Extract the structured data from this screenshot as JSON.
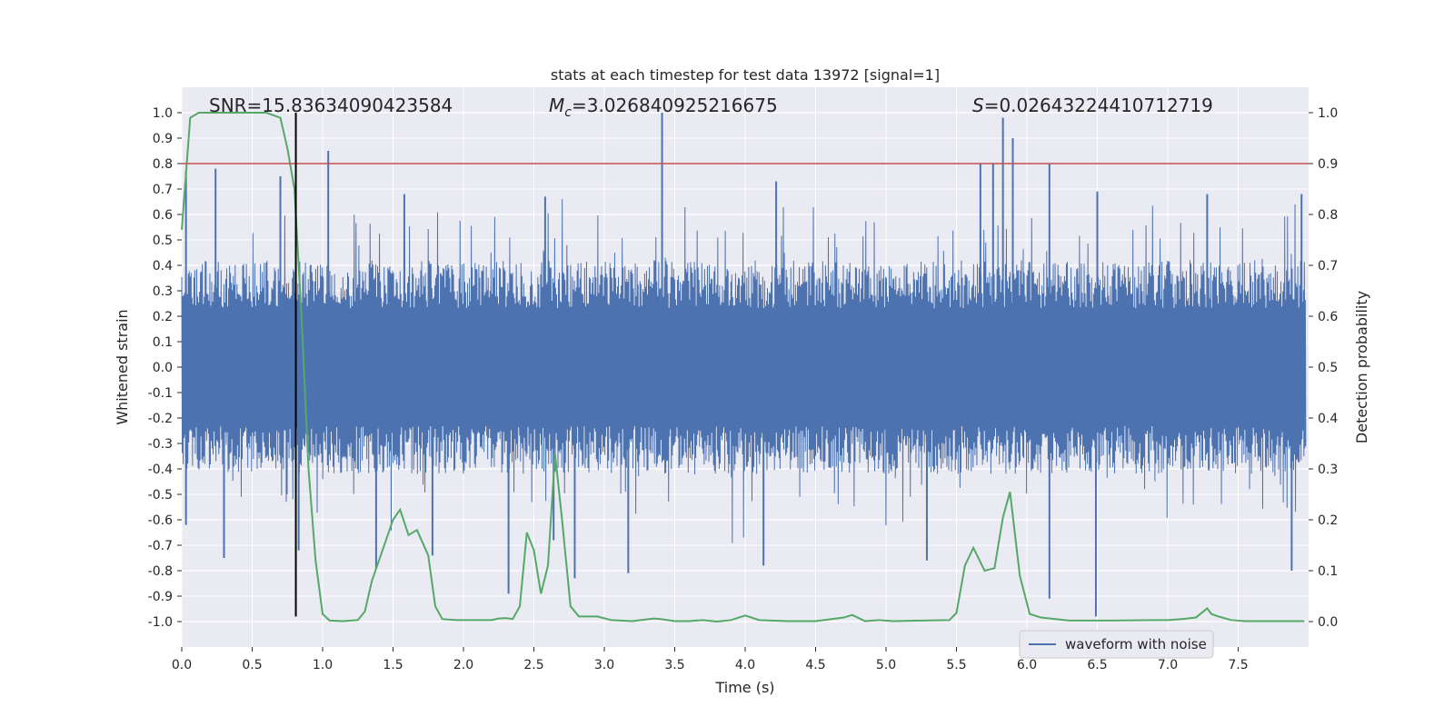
{
  "chart_data": {
    "type": "line",
    "title": "stats at each timestep for test data 13972 [signal=1]",
    "xlabel": "Time (s)",
    "ylabel": "Whitened strain",
    "y2label": "Detection probability",
    "xlim": [
      0,
      8
    ],
    "ylim": [
      -1.1,
      1.1
    ],
    "y2lim": [
      -0.05,
      1.05
    ],
    "xticks": [
      0.0,
      0.5,
      1.0,
      1.5,
      2.0,
      2.5,
      3.0,
      3.5,
      4.0,
      4.5,
      5.0,
      5.5,
      6.0,
      6.5,
      7.0,
      7.5
    ],
    "yticks": [
      -1.0,
      -0.9,
      -0.8,
      -0.7,
      -0.6,
      -0.5,
      -0.4,
      -0.3,
      -0.2,
      -0.1,
      0.0,
      0.1,
      0.2,
      0.3,
      0.4,
      0.5,
      0.6,
      0.7,
      0.8,
      0.9,
      1.0
    ],
    "y2ticks": [
      0.0,
      0.1,
      0.2,
      0.3,
      0.4,
      0.5,
      0.6,
      0.7,
      0.8,
      0.9,
      1.0
    ],
    "threshold_line": {
      "y2": 0.9,
      "color": "#c44e52"
    },
    "event_line": {
      "x": 0.81,
      "y_from": -0.98,
      "y_to": 1.0,
      "color": "#000000"
    },
    "annotations": {
      "snr": "SNR=15.83634090423584",
      "mc": "=3.026840925216675",
      "mc_symbol": "M",
      "mc_sub": "c",
      "s": "=0.02643224410712719",
      "s_symbol": "S"
    },
    "legend": {
      "label": "waveform with noise",
      "position": "lower-right"
    },
    "colors": {
      "waveform": "#4c72b0",
      "probability": "#55a868",
      "background": "#eaeaf2",
      "grid": "#ffffff"
    },
    "waveform_series": {
      "name": "waveform with noise",
      "t_start": 0.0,
      "t_end": 7.98,
      "samples": 2400,
      "seed": 13972,
      "base_amplitude": 0.42,
      "spikes": [
        {
          "x": 0.03,
          "y": 0.77
        },
        {
          "x": 0.03,
          "y": -0.62
        },
        {
          "x": 0.24,
          "y": 0.78
        },
        {
          "x": 0.3,
          "y": -0.75
        },
        {
          "x": 0.7,
          "y": 0.75
        },
        {
          "x": 0.83,
          "y": -0.72
        },
        {
          "x": 1.04,
          "y": 0.85
        },
        {
          "x": 1.38,
          "y": -0.79
        },
        {
          "x": 1.58,
          "y": 0.68
        },
        {
          "x": 1.78,
          "y": -0.74
        },
        {
          "x": 2.32,
          "y": -0.89
        },
        {
          "x": 2.58,
          "y": 0.67
        },
        {
          "x": 2.64,
          "y": -0.68
        },
        {
          "x": 2.79,
          "y": -0.83
        },
        {
          "x": 3.17,
          "y": -0.81
        },
        {
          "x": 3.41,
          "y": 1.0
        },
        {
          "x": 4.13,
          "y": -0.78
        },
        {
          "x": 4.22,
          "y": 0.73
        },
        {
          "x": 5.29,
          "y": -0.76
        },
        {
          "x": 5.67,
          "y": 0.8
        },
        {
          "x": 5.76,
          "y": 0.8
        },
        {
          "x": 5.83,
          "y": 0.98
        },
        {
          "x": 5.9,
          "y": 0.9
        },
        {
          "x": 6.16,
          "y": -0.91
        },
        {
          "x": 6.16,
          "y": 0.8
        },
        {
          "x": 6.49,
          "y": -0.98
        },
        {
          "x": 6.5,
          "y": 0.69
        },
        {
          "x": 7.28,
          "y": 0.68
        },
        {
          "x": 7.88,
          "y": -0.8
        },
        {
          "x": 7.95,
          "y": 0.68
        }
      ]
    },
    "probability_series": {
      "name": "detection probability",
      "x": [
        0.0,
        0.06,
        0.12,
        0.6,
        0.7,
        0.75,
        0.8,
        0.85,
        0.9,
        0.95,
        1.0,
        1.05,
        1.15,
        1.25,
        1.3,
        1.35,
        1.4,
        1.45,
        1.5,
        1.55,
        1.61,
        1.67,
        1.75,
        1.8,
        1.85,
        1.95,
        2.1,
        2.2,
        2.25,
        2.3,
        2.35,
        2.4,
        2.45,
        2.5,
        2.55,
        2.6,
        2.65,
        2.7,
        2.76,
        2.82,
        2.9,
        2.95,
        3.05,
        3.2,
        3.35,
        3.4,
        3.5,
        3.6,
        3.7,
        3.8,
        3.9,
        4.0,
        4.1,
        4.3,
        4.5,
        4.7,
        4.76,
        4.85,
        4.95,
        5.05,
        5.25,
        5.45,
        5.5,
        5.56,
        5.62,
        5.7,
        5.77,
        5.83,
        5.88,
        5.95,
        6.02,
        6.1,
        6.3,
        6.6,
        6.9,
        7.0,
        7.1,
        7.2,
        7.28,
        7.31,
        7.36,
        7.45,
        7.55,
        7.97
      ],
      "y": [
        0.77,
        0.99,
        1.0,
        1.0,
        0.99,
        0.93,
        0.85,
        0.6,
        0.3,
        0.12,
        0.015,
        0.002,
        0.001,
        0.003,
        0.02,
        0.08,
        0.12,
        0.16,
        0.2,
        0.22,
        0.17,
        0.18,
        0.13,
        0.03,
        0.005,
        0.003,
        0.003,
        0.003,
        0.006,
        0.007,
        0.005,
        0.03,
        0.175,
        0.14,
        0.055,
        0.11,
        0.33,
        0.2,
        0.03,
        0.01,
        0.01,
        0.01,
        0.003,
        0.001,
        0.006,
        0.005,
        0.001,
        0.001,
        0.003,
        0.0,
        0.003,
        0.012,
        0.003,
        0.001,
        0.001,
        0.008,
        0.013,
        0.001,
        0.003,
        0.001,
        0.002,
        0.003,
        0.017,
        0.11,
        0.145,
        0.1,
        0.105,
        0.205,
        0.255,
        0.09,
        0.015,
        0.008,
        0.002,
        0.002,
        0.003,
        0.003,
        0.005,
        0.008,
        0.026,
        0.015,
        0.01,
        0.003,
        0.001,
        0.001
      ]
    }
  }
}
